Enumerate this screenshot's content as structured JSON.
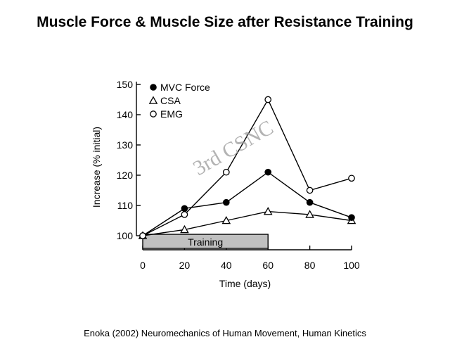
{
  "page": {
    "title": "Muscle Force & Muscle Size after Resistance Training",
    "caption": "Enoka (2002) Neuromechanics of Human Movement, Human Kinetics",
    "watermark": "3rd CSNC"
  },
  "chart_data": {
    "type": "line",
    "title": "Muscle Force & Muscle Size after Resistance Training",
    "xlabel": "Time (days)",
    "ylabel": "Increase (% initial)",
    "xlim": [
      0,
      100
    ],
    "ylim": [
      100,
      150
    ],
    "xticks": [
      0,
      20,
      40,
      60,
      80,
      100
    ],
    "yticks": [
      100,
      110,
      120,
      130,
      140,
      150
    ],
    "legend_position": "top-left",
    "grid": false,
    "series": [
      {
        "name": "MVC Force",
        "marker": "filled-circle",
        "color": "#000000",
        "x": [
          0,
          20,
          40,
          60,
          80,
          100
        ],
        "y": [
          100,
          109,
          111,
          121,
          111,
          106
        ]
      },
      {
        "name": "CSA",
        "marker": "open-triangle",
        "color": "#000000",
        "x": [
          0,
          20,
          40,
          60,
          80,
          100
        ],
        "y": [
          100,
          102,
          105,
          108,
          107,
          105
        ]
      },
      {
        "name": "EMG",
        "marker": "open-circle",
        "color": "#000000",
        "x": [
          0,
          20,
          40,
          60,
          80,
          100
        ],
        "y": [
          100,
          107,
          121,
          145,
          115,
          119
        ]
      }
    ],
    "annotations": [
      {
        "text": "Training",
        "x_start": 0,
        "x_end": 60,
        "fill": "#c0c0c0"
      }
    ]
  }
}
